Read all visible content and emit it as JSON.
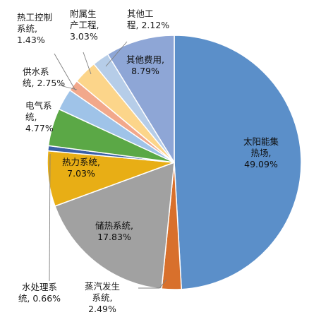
{
  "chart_data": {
    "type": "pie",
    "start_angle_deg": 0,
    "direction": "clockwise",
    "slices": [
      {
        "key": "solar",
        "label_lines": [
          "太阳能集",
          "热场,",
          "49.09%"
        ],
        "value": 49.09,
        "color": "#5B8FC9"
      },
      {
        "key": "steam",
        "label_lines": [
          "蒸汽发生",
          "系统,",
          "2.49%"
        ],
        "value": 2.49,
        "color": "#D8702C"
      },
      {
        "key": "storage",
        "label_lines": [
          "储热系统,",
          "17.83%"
        ],
        "value": 17.83,
        "color": "#A1A1A1"
      },
      {
        "key": "heat_power",
        "label_lines": [
          "热力系统,",
          "7.03%"
        ],
        "value": 7.03,
        "color": "#E8AE15"
      },
      {
        "key": "water_treatment",
        "label_lines": [
          "水处理系",
          "统, 0.66%"
        ],
        "value": 0.66,
        "color": "#3A60A6"
      },
      {
        "key": "electrical",
        "label_lines": [
          "电气系",
          "统,",
          "4.77%"
        ],
        "value": 4.77,
        "color": "#5BA846"
      },
      {
        "key": "water_supply",
        "label_lines": [
          "供水系",
          "统, 2.75%"
        ],
        "value": 2.75,
        "color": "#9FC3E8"
      },
      {
        "key": "thermal_control",
        "label_lines": [
          "热工控制",
          "系统,",
          "1.43%"
        ],
        "value": 1.43,
        "color": "#F2A88B"
      },
      {
        "key": "auxiliary",
        "label_lines": [
          "附属生",
          "产工程,",
          "3.03%"
        ],
        "value": 3.03,
        "color": "#FCD58A"
      },
      {
        "key": "other_eng",
        "label_lines": [
          "其他工",
          "程, 2.12%"
        ],
        "value": 2.12,
        "color": "#B6CDE8"
      },
      {
        "key": "other_cost",
        "label_lines": [
          "其他费用,",
          "8.79%"
        ],
        "value": 8.79,
        "color": "#8EA6D6"
      }
    ]
  }
}
